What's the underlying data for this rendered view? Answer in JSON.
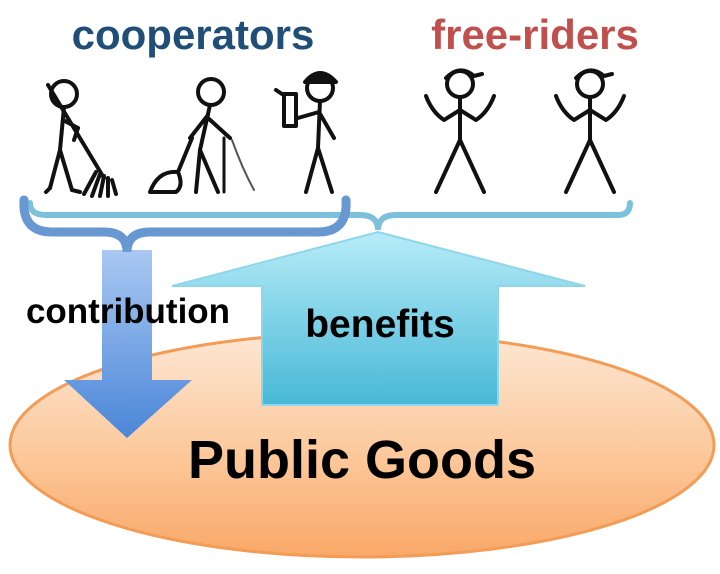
{
  "labels": {
    "cooperators": "cooperators",
    "free_riders": "free-riders",
    "contribution": "contribution",
    "benefits": "benefits",
    "public_goods": "Public Goods"
  },
  "figures": [
    {
      "group": "cooperators",
      "activity": "sweeping-with-rake",
      "icon": "figure-raking-icon"
    },
    {
      "group": "cooperators",
      "activity": "vacuuming",
      "icon": "figure-vacuuming-icon"
    },
    {
      "group": "cooperators",
      "activity": "spraying-cleaner-hardhat",
      "icon": "figure-worker-icon"
    },
    {
      "group": "free-riders",
      "activity": "shrugging-cap",
      "icon": "figure-shrugging-icon"
    },
    {
      "group": "free-riders",
      "activity": "shrugging-cap",
      "icon": "figure-shrugging-icon"
    }
  ],
  "colors": {
    "cooperators_text": "#1f4e79",
    "free_riders_text": "#c0504d",
    "bracket_cooperators": "#5b8cc8",
    "bracket_all": "#6fb3d2",
    "contribution_arrow": "#6a9be0",
    "benefits_arrow": "#5bc3dc",
    "ellipse_fill": "#fbc79c",
    "ellipse_stroke": "#f4a460"
  }
}
